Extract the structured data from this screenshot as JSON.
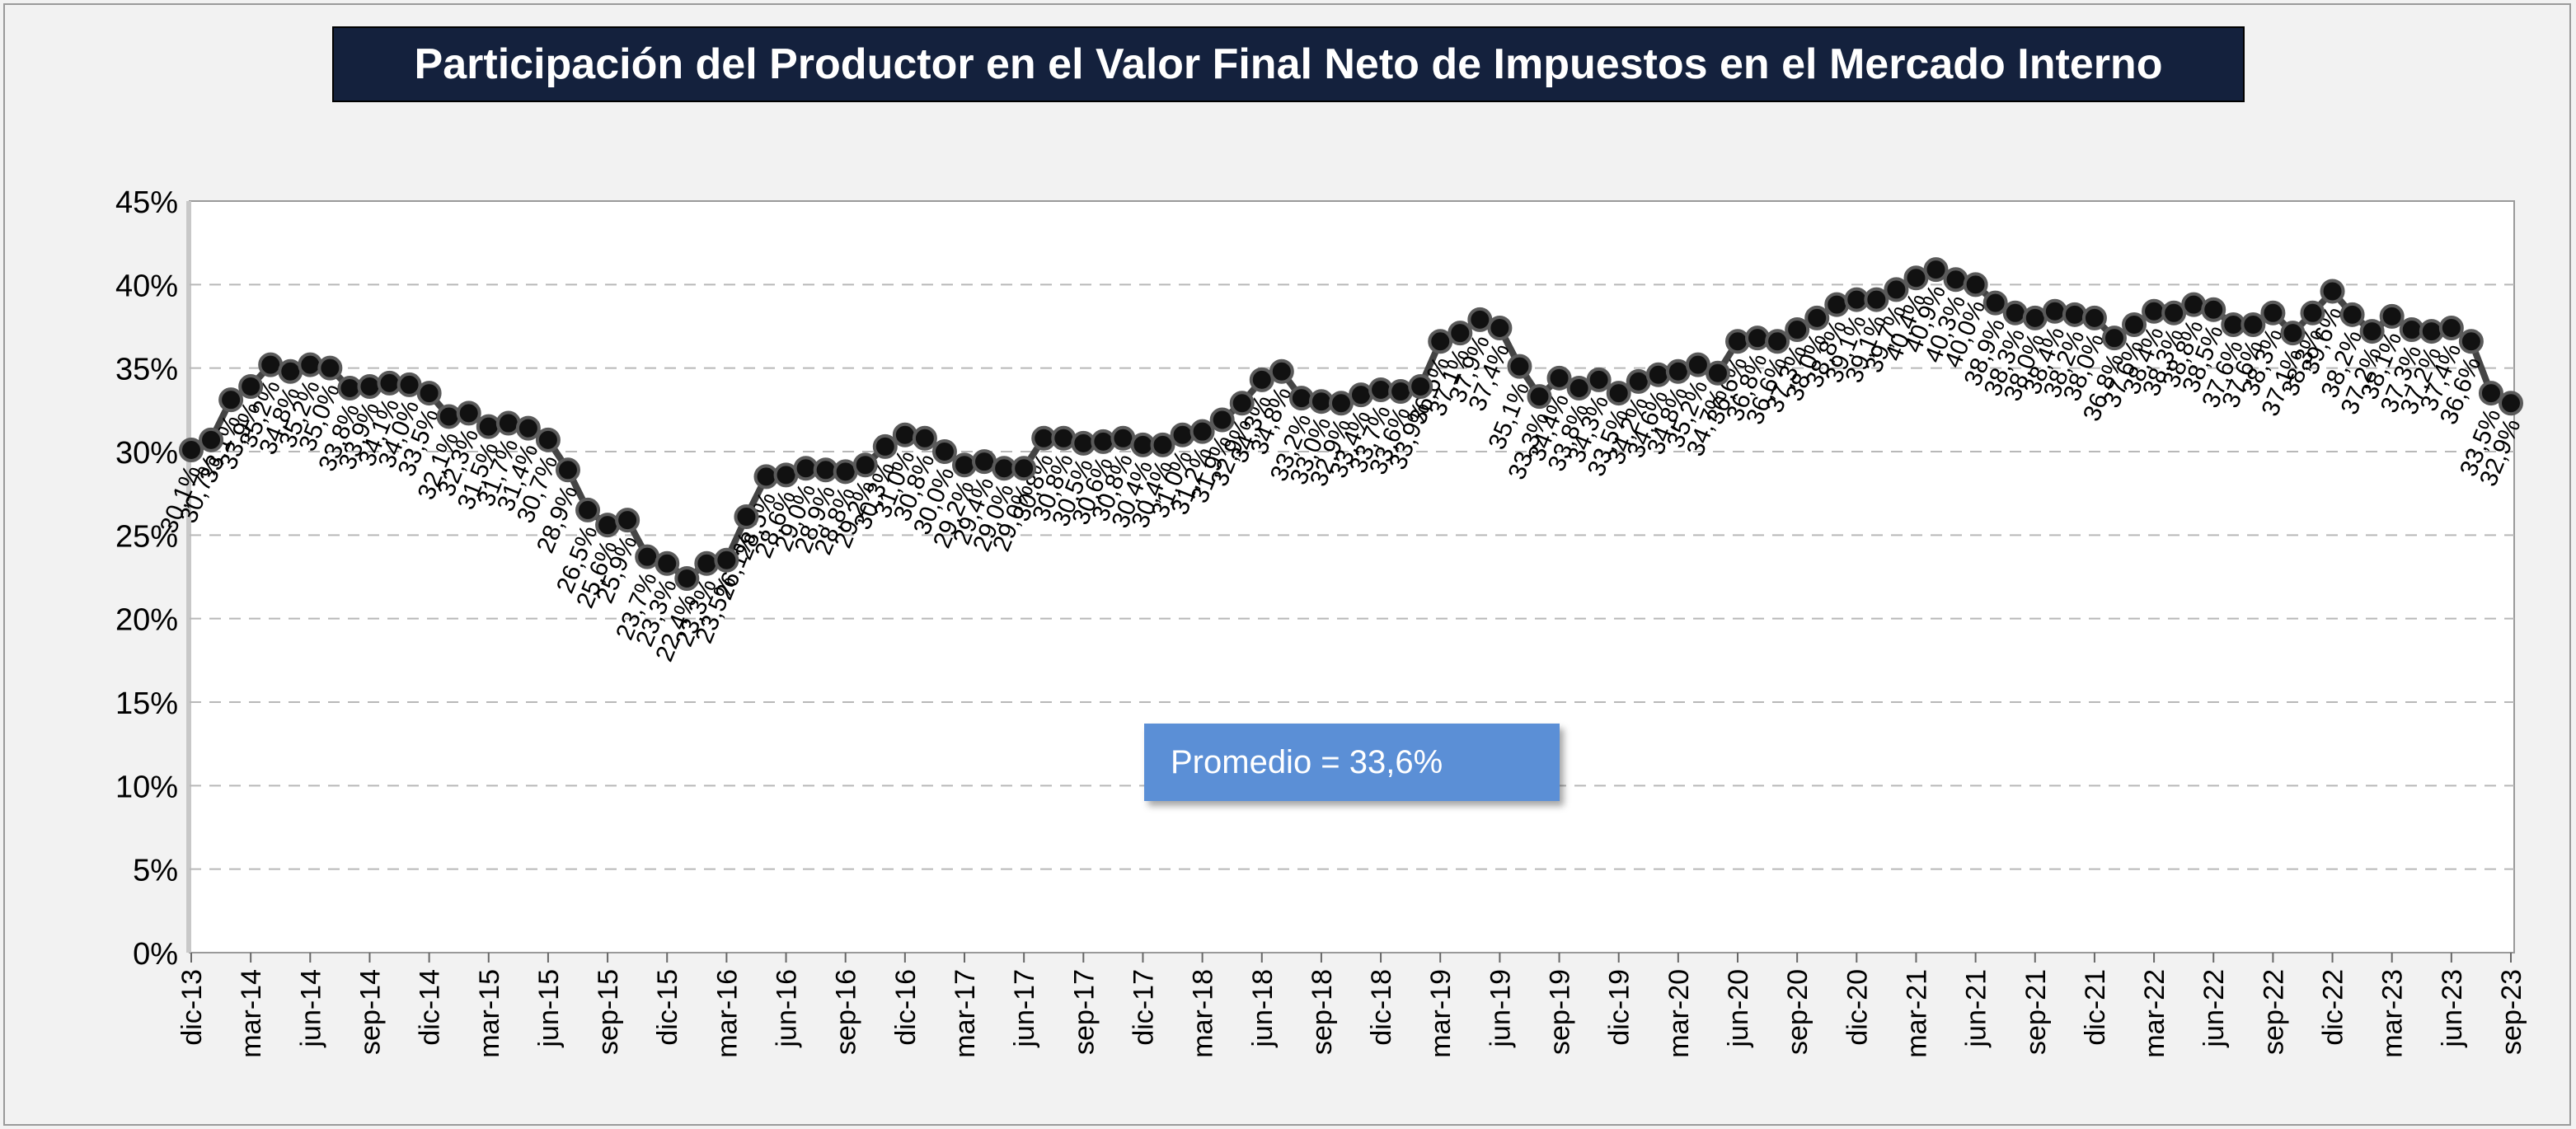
{
  "title": "Participación del Productor en el Valor Final Neto de Impuestos en el Mercado Interno",
  "average_label": "Promedio = 33,6%",
  "colors": {
    "line": "#444444",
    "marker": "#111111",
    "title_bg": "#14213d",
    "avg_bg": "#5b8fd6"
  },
  "chart_data": {
    "type": "line",
    "title": "Participación del Productor en el Valor Final Neto de Impuestos en el Mercado Interno",
    "xlabel": "",
    "ylabel": "",
    "ylim": [
      0,
      45
    ],
    "yticks": [
      "0%",
      "5%",
      "10%",
      "15%",
      "20%",
      "25%",
      "30%",
      "35%",
      "40%",
      "45%"
    ],
    "grid": true,
    "x_tick_labels": [
      "dic-13",
      "mar-14",
      "jun-14",
      "sep-14",
      "dic-14",
      "mar-15",
      "jun-15",
      "sep-15",
      "dic-15",
      "mar-16",
      "jun-16",
      "sep-16",
      "dic-16",
      "mar-17",
      "jun-17",
      "sep-17",
      "dic-17",
      "mar-18",
      "jun-18",
      "sep-18",
      "dic-18",
      "mar-19",
      "jun-19",
      "sep-19",
      "dic-19",
      "mar-20",
      "jun-20",
      "sep-20",
      "dic-20",
      "mar-21",
      "jun-21",
      "sep-21",
      "dic-21",
      "mar-22",
      "jun-22",
      "sep-22",
      "dic-22",
      "mar-23",
      "jun-23",
      "sep-23"
    ],
    "tick_every": 3,
    "values": [
      30.1,
      30.7,
      33.1,
      33.9,
      35.2,
      34.8,
      35.2,
      35.0,
      33.8,
      33.9,
      34.1,
      34.0,
      33.5,
      32.1,
      32.3,
      31.5,
      31.7,
      31.4,
      30.7,
      28.9,
      26.5,
      25.6,
      25.9,
      23.7,
      23.3,
      22.4,
      23.3,
      23.5,
      26.1,
      28.5,
      28.6,
      29.0,
      28.9,
      28.8,
      29.2,
      30.3,
      31.0,
      30.8,
      30.0,
      29.2,
      29.4,
      29.0,
      29.0,
      30.8,
      30.8,
      30.5,
      30.6,
      30.8,
      30.4,
      30.4,
      31.0,
      31.2,
      31.9,
      32.9,
      34.3,
      34.8,
      33.2,
      33.0,
      32.9,
      33.4,
      33.7,
      33.6,
      33.9,
      36.6,
      37.1,
      37.9,
      37.4,
      35.1,
      33.3,
      34.4,
      33.8,
      34.3,
      33.5,
      34.2,
      34.6,
      34.8,
      35.2,
      34.7,
      36.6,
      36.8,
      36.6,
      37.3,
      38.0,
      38.8,
      39.1,
      39.1,
      39.7,
      40.4,
      40.9,
      40.3,
      40.0,
      38.9,
      38.3,
      38.0,
      38.4,
      38.2,
      38.0,
      36.8,
      37.6,
      38.4,
      38.3,
      38.8,
      38.5,
      37.6,
      37.6,
      38.3,
      37.1,
      38.3,
      39.6,
      38.2,
      37.2,
      38.1,
      37.3,
      37.2,
      37.4,
      36.6,
      33.5,
      32.9
    ],
    "data_labels": [
      "30,1%",
      "30,7%",
      "33,1%",
      "33,9%",
      "35,2%",
      "34,8%",
      "35,2%",
      "35,0%",
      "33,8%",
      "33,9%",
      "34,1%",
      "34,0%",
      "33,5%",
      "32,1%",
      "32,3%",
      "31,5%",
      "31,7%",
      "31,4%",
      "30,7%",
      "28,9%",
      "26,5%",
      "25,6%",
      "25,9%",
      "23,7%",
      "23,3%",
      "22,4%",
      "23,3%",
      "23,5%",
      "26,1%",
      "28,5%",
      "28,6%",
      "29,0%",
      "28,9%",
      "28,8%",
      "29,2%",
      "30,3%",
      "31,0%",
      "30,8%",
      "30,0%",
      "29,2%",
      "29,4%",
      "29,0%",
      "29,0%",
      "30,8%",
      "30,8%",
      "30,5%",
      "30,6%",
      "30,8%",
      "30,4%",
      "30,4%",
      "31,0%",
      "31,2%",
      "31,9%",
      "32,9%",
      "34,3%",
      "34,8%",
      "33,2%",
      "33,0%",
      "32,9%",
      "33,4%",
      "33,7%",
      "33,6%",
      "33,9%",
      "36,6%",
      "37,1%",
      "37,9%",
      "37,4%",
      "35,1%",
      "33,3%",
      "34,4%",
      "33,8%",
      "34,3%",
      "33,5%",
      "34,2%",
      "34,6%",
      "34,8%",
      "35,2%",
      "34,7%",
      "36,6%",
      "36,8%",
      "36,6%",
      "37,3%",
      "38,0%",
      "38,8%",
      "39,1%",
      "39,1%",
      "39,7%",
      "40,4%",
      "40,9%",
      "40,3%",
      "40,0%",
      "38,9%",
      "38,3%",
      "38,0%",
      "38,4%",
      "38,2%",
      "38,0%",
      "36,8%",
      "37,6%",
      "38,4%",
      "38,3%",
      "38,8%",
      "38,5%",
      "37,6%",
      "37,6%",
      "38,3%",
      "37,1%",
      "38,3%",
      "39,6%",
      "38,2%",
      "37,2%",
      "38,1%",
      "37,3%",
      "37,2%",
      "37,4%",
      "36,6%",
      "33,5%",
      "32,9%"
    ]
  }
}
